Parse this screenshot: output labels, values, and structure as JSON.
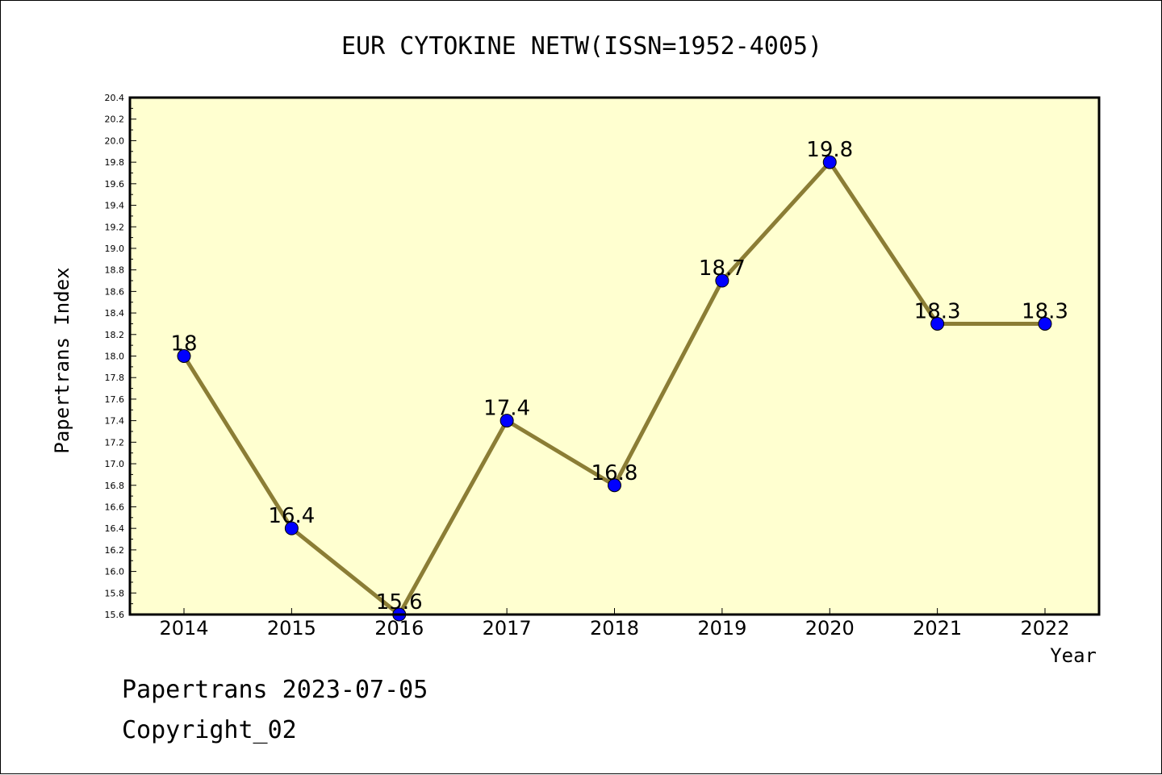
{
  "chart_data": {
    "type": "line",
    "title": "EUR CYTOKINE NETW(ISSN=1952-4005)",
    "xlabel": "Year",
    "ylabel": "Papertrans Index",
    "categories": [
      "2014",
      "2015",
      "2016",
      "2017",
      "2018",
      "2019",
      "2020",
      "2021",
      "2022"
    ],
    "values": [
      18,
      16.4,
      15.6,
      17.4,
      16.8,
      18.7,
      19.8,
      18.3,
      18.3
    ],
    "data_labels": [
      "18",
      "16.4",
      "15.6",
      "17.4",
      "16.8",
      "18.7",
      "19.8",
      "18.3",
      "18.3"
    ],
    "ylim": [
      15.6,
      20.4
    ],
    "yticks": [
      "15.6",
      "15.8",
      "16.0",
      "16.2",
      "16.4",
      "16.6",
      "16.8",
      "17.0",
      "17.2",
      "17.4",
      "17.6",
      "17.8",
      "18.0",
      "18.2",
      "18.4",
      "18.6",
      "18.8",
      "19.0",
      "19.2",
      "19.4",
      "19.6",
      "19.8",
      "20.0",
      "20.2",
      "20.4"
    ],
    "grid": false,
    "colors": {
      "line": "#8B7D35",
      "marker": "#0000FF",
      "plot_bg": "#FFFFD0"
    }
  },
  "footer": {
    "line1": "Papertrans 2023-07-05",
    "line2": "Copyright_02"
  }
}
